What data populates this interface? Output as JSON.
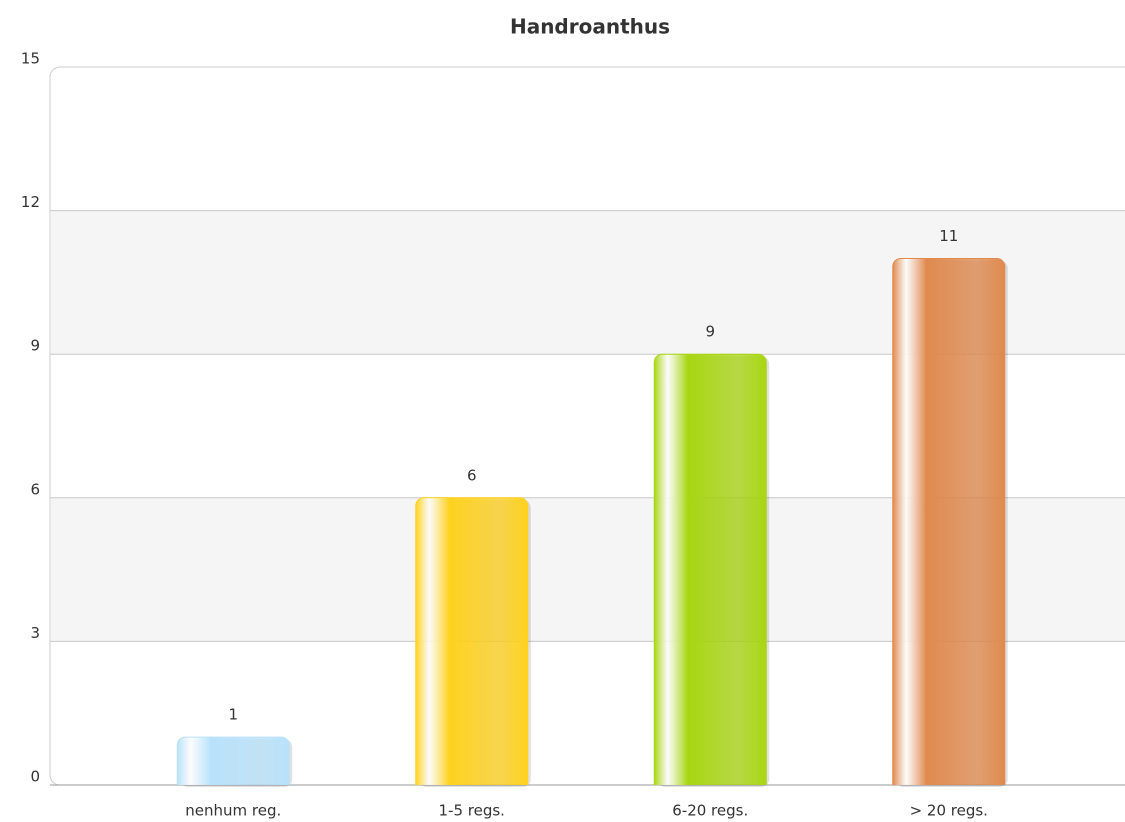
{
  "chart_data": {
    "type": "bar",
    "title": "Handroanthus",
    "categories": [
      "nenhum reg.",
      "1-5 regs.",
      "6-20 regs.",
      "> 20 regs."
    ],
    "values": [
      1,
      6,
      9,
      11
    ],
    "colors": [
      "#b8e2fb",
      "#ffd21f",
      "#a8d612",
      "#e08a4e"
    ],
    "ylim": [
      0,
      15
    ],
    "yticks": [
      0,
      3,
      6,
      9,
      12,
      15
    ],
    "grid": true
  }
}
